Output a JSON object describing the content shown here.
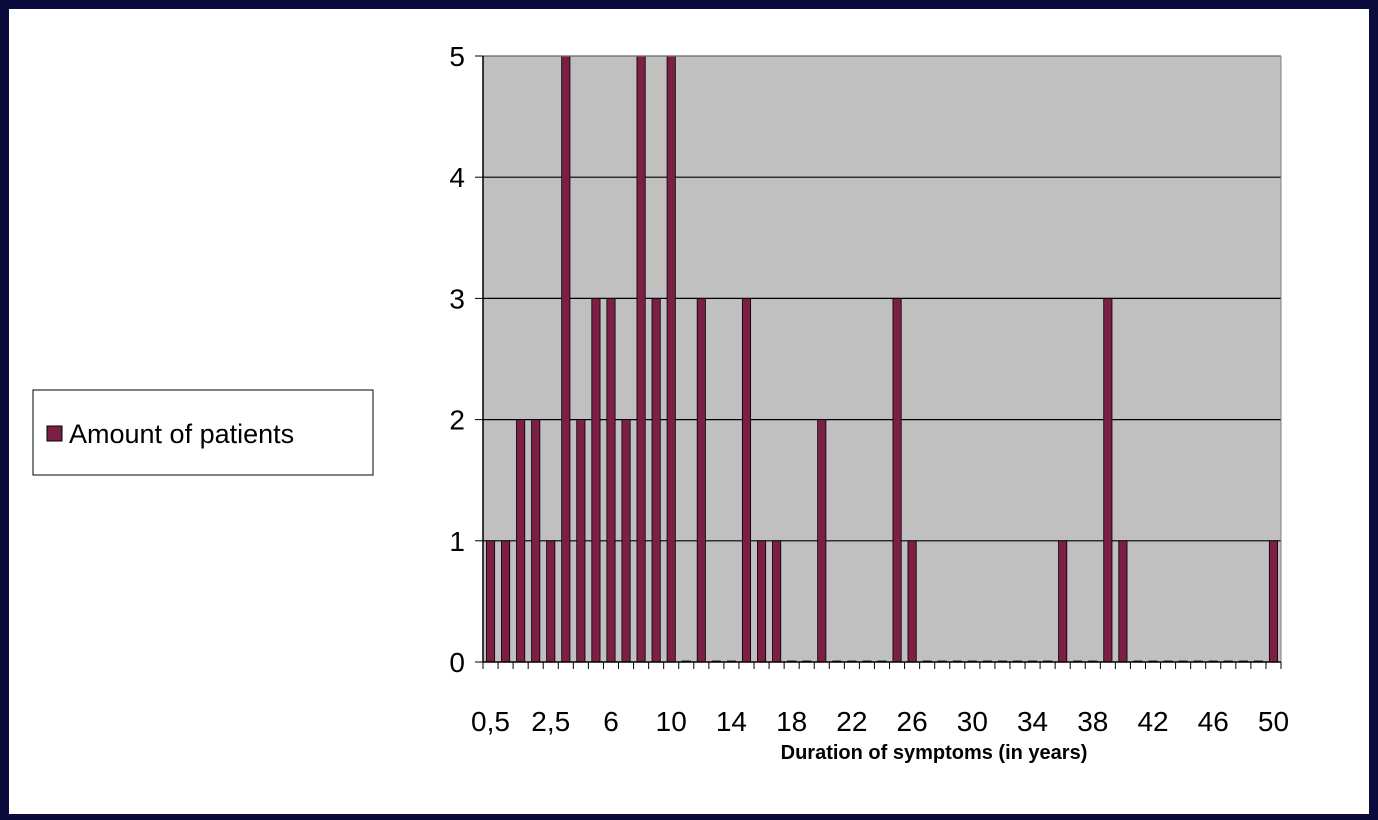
{
  "chart_data": {
    "type": "bar",
    "xlabel": "Duration of symptoms (in years)",
    "ylabel": "",
    "ylim": [
      0,
      5
    ],
    "yticks": [
      0,
      1,
      2,
      3,
      4,
      5
    ],
    "grid": true,
    "legend_placement": "left",
    "categories": [
      "0,5",
      "1",
      "1,5",
      "2",
      "2,5",
      "3",
      "4",
      "5",
      "6",
      "7",
      "8",
      "9",
      "10",
      "11",
      "12",
      "13",
      "14",
      "15",
      "16",
      "17",
      "18",
      "19",
      "20",
      "21",
      "22",
      "23",
      "24",
      "25",
      "26",
      "27",
      "28",
      "29",
      "30",
      "31",
      "32",
      "33",
      "34",
      "35",
      "36",
      "37",
      "38",
      "39",
      "40",
      "41",
      "42",
      "43",
      "44",
      "45",
      "46",
      "47",
      "48",
      "49",
      "50"
    ],
    "x_tick_labels_shown": [
      "0,5",
      "2,5",
      "6",
      "10",
      "14",
      "18",
      "22",
      "26",
      "30",
      "34",
      "38",
      "42",
      "46",
      "50"
    ],
    "series": [
      {
        "name": "Amount of patients",
        "color": "#7b1f45",
        "values": [
          1,
          1,
          2,
          2,
          1,
          5,
          2,
          3,
          3,
          2,
          5,
          3,
          5,
          0,
          3,
          0,
          0,
          3,
          1,
          1,
          0,
          0,
          2,
          0,
          0,
          0,
          0,
          3,
          1,
          0,
          0,
          0,
          0,
          0,
          0,
          0,
          0,
          0,
          1,
          0,
          0,
          3,
          1,
          0,
          0,
          0,
          0,
          0,
          0,
          0,
          0,
          0,
          1
        ]
      }
    ],
    "plot_background": "#c0c0c0"
  }
}
